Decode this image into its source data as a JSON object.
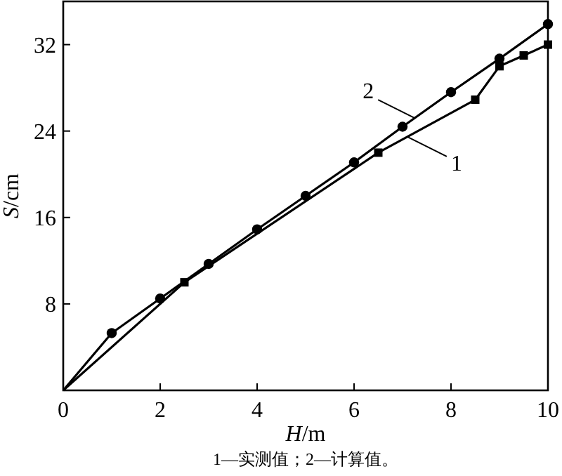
{
  "chart_data": {
    "type": "line",
    "xlabel": "H/m",
    "ylabel": "S/cm",
    "xlim": [
      0,
      10
    ],
    "ylim": [
      0,
      36
    ],
    "xticks": [
      0,
      2,
      4,
      6,
      8,
      10
    ],
    "yticks": [
      8,
      16,
      24,
      32
    ],
    "grid": false,
    "series": [
      {
        "name": "1",
        "color": "#000000",
        "marker": "square",
        "x": [
          0,
          2.5,
          6.5,
          8.5,
          9,
          9.5,
          10
        ],
        "values": [
          0,
          10.0,
          22.0,
          26.9,
          30.0,
          31.0,
          32.0
        ]
      },
      {
        "name": "2",
        "color": "#000000",
        "marker": "circle",
        "x": [
          0,
          1,
          2,
          3,
          4,
          5,
          6,
          7,
          8,
          9,
          10
        ],
        "values": [
          0,
          5.3,
          8.5,
          11.7,
          14.9,
          18.0,
          21.1,
          24.4,
          27.6,
          30.7,
          33.9
        ]
      }
    ],
    "annotations": [
      "1—实测值；2—计算值。"
    ]
  }
}
